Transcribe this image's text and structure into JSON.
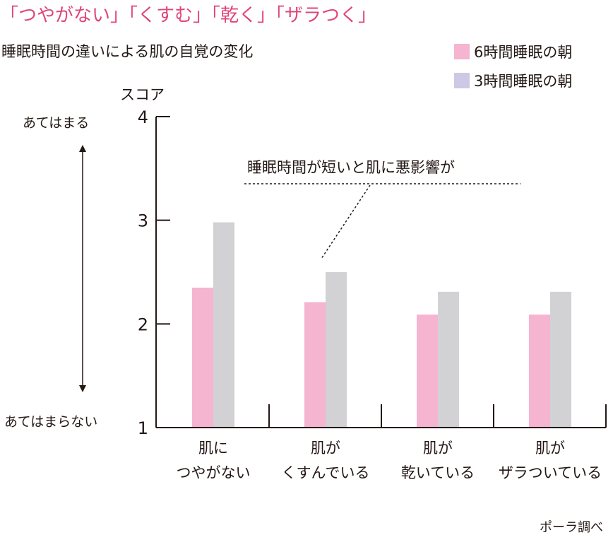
{
  "headline": "「つやがない」「くすむ」「乾く」「ザラつく」",
  "colors": {
    "headline": "#e0457b",
    "series_6h": "#f5b4d0",
    "series_3h": "#d2d2d4",
    "legend_3h": "#cdc8e3",
    "axis": "#231815"
  },
  "scale_labels": {
    "top": "あてはまる",
    "bottom": "あてはまらない"
  },
  "annotation": "睡眠時間が短いと肌に悪影響が",
  "source": "ポーラ調べ",
  "chart_data": {
    "type": "bar",
    "title": "睡眠時間の違いによる肌の自覚の変化",
    "ylabel": "スコア",
    "xlabel": "",
    "ylim": [
      1,
      4
    ],
    "yticks": [
      "1",
      "2",
      "3",
      "4"
    ],
    "grid": false,
    "legend_position": "top-right",
    "categories": [
      {
        "line1": "肌に",
        "line2": "つやがない"
      },
      {
        "line1": "肌が",
        "line2": "くすんでいる"
      },
      {
        "line1": "肌が",
        "line2": "乾いている"
      },
      {
        "line1": "肌が",
        "line2": "ザラついている"
      }
    ],
    "series": [
      {
        "name": "6時間睡眠の朝",
        "values": [
          2.35,
          2.21,
          2.09,
          2.09
        ]
      },
      {
        "name": "3時間睡眠の朝",
        "values": [
          2.98,
          2.5,
          2.31,
          2.31
        ]
      }
    ]
  }
}
